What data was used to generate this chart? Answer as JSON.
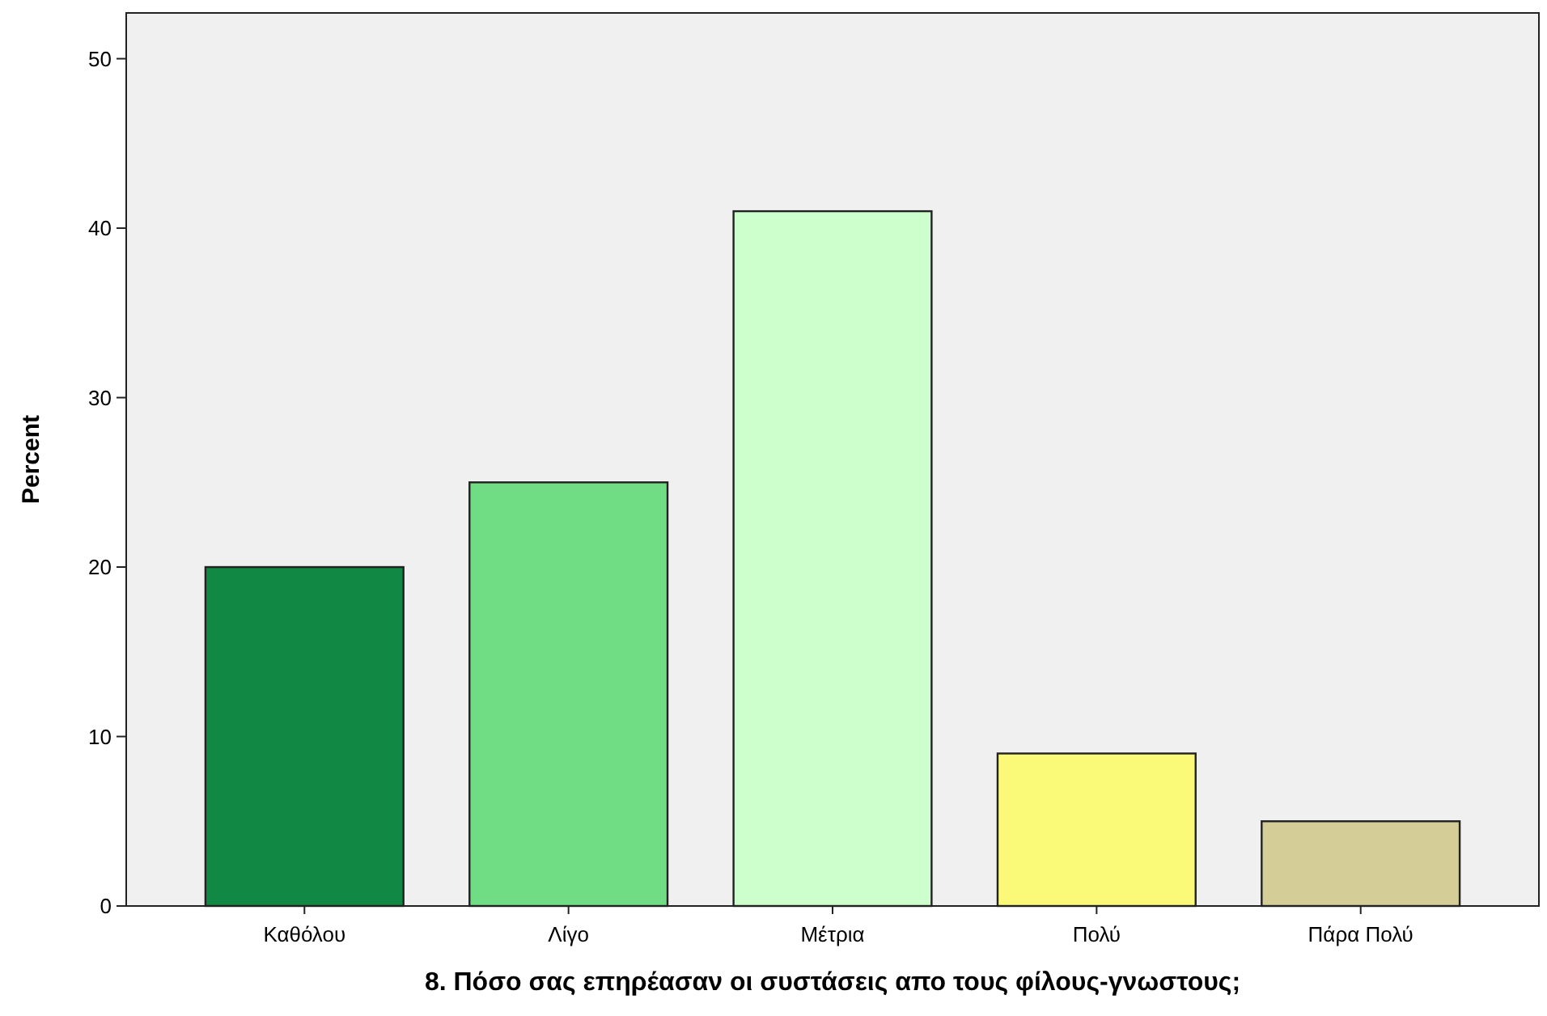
{
  "chart_data": {
    "type": "bar",
    "xlabel": "8. Πόσο σας επηρέασαν οι συστάσεις απο τους φίλους-γνωστους;",
    "ylabel": "Percent",
    "categories": [
      "Καθόλου",
      "Λίγο",
      "Μέτρια",
      "Πολύ",
      "Πάρα Πολύ"
    ],
    "values": [
      20,
      25,
      41,
      9,
      5
    ],
    "colors": [
      "#118844",
      "#70dc84",
      "#ccffcc",
      "#fafa78",
      "#d4cd98"
    ],
    "ylim": [
      0,
      52.7
    ],
    "yticks": [
      0,
      10,
      20,
      30,
      40,
      50
    ]
  }
}
